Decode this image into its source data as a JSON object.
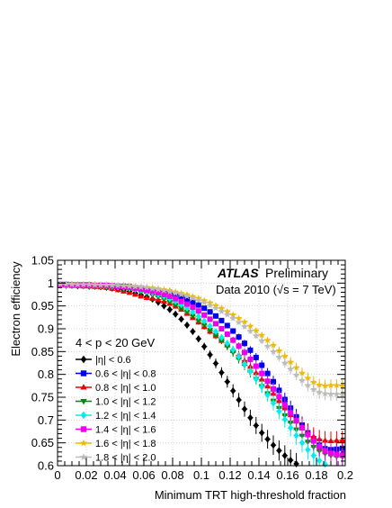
{
  "chart_data": {
    "type": "scatter",
    "xlabel": "Minimum TRT high-threshold fraction",
    "ylabel": "Electron efficiency",
    "xlim": [
      0,
      0.2
    ],
    "ylim": [
      0.6,
      1.05
    ],
    "xticks": [
      0,
      0.02,
      0.04,
      0.06,
      0.08,
      0.1,
      0.12,
      0.14,
      0.16,
      0.18,
      0.2
    ],
    "xtick_labels": [
      "0",
      "0.02",
      "0.04",
      "0.06",
      "0.08",
      "0.1",
      "0.12",
      "0.14",
      "0.16",
      "0.18",
      "0.2"
    ],
    "yticks": [
      0.6,
      0.65,
      0.7,
      0.75,
      0.8,
      0.85,
      0.9,
      0.95,
      1,
      1.05
    ],
    "ytick_labels": [
      "0.6",
      "0.65",
      "0.7",
      "0.75",
      "0.8",
      "0.85",
      "0.9",
      "0.95",
      "1",
      "1.05"
    ],
    "grid": true,
    "legend_position": "left",
    "annotations": {
      "atlas": "ATLAS",
      "preliminary": "Preliminary",
      "dataset": "Data 2010 (√s = 7 TeV)",
      "selection": "4 < p < 20 GeV"
    },
    "x": [
      0.002,
      0.006,
      0.01,
      0.014,
      0.018,
      0.022,
      0.026,
      0.03,
      0.034,
      0.038,
      0.042,
      0.046,
      0.05,
      0.054,
      0.058,
      0.062,
      0.066,
      0.07,
      0.074,
      0.078,
      0.082,
      0.086,
      0.09,
      0.094,
      0.098,
      0.102,
      0.106,
      0.11,
      0.114,
      0.118,
      0.122,
      0.126,
      0.13,
      0.134,
      0.138,
      0.142,
      0.146,
      0.15,
      0.154,
      0.158,
      0.162,
      0.166,
      0.17,
      0.174,
      0.178,
      0.182,
      0.186,
      0.19,
      0.194,
      0.198
    ],
    "series": [
      {
        "name": "|η| < 0.6",
        "color": "#000000",
        "marker": "diamond",
        "values": [
          0.996,
          0.995,
          0.995,
          0.994,
          0.994,
          0.993,
          0.993,
          0.992,
          0.991,
          0.989,
          0.987,
          0.985,
          0.982,
          0.978,
          0.974,
          0.97,
          0.965,
          0.958,
          0.95,
          0.942,
          0.932,
          0.921,
          0.908,
          0.894,
          0.878,
          0.861,
          0.843,
          0.824,
          0.804,
          0.784,
          0.764,
          0.744,
          0.724,
          0.705,
          0.688,
          0.672,
          0.658,
          0.645,
          0.633,
          0.622,
          0.612,
          0.604,
          0.597,
          0.592,
          0.588,
          0.585,
          0.583,
          0.582,
          0.581,
          0.58
        ]
      },
      {
        "name": "0.6 < |η| < 0.8",
        "color": "#0000ee",
        "marker": "square",
        "values": [
          0.997,
          0.997,
          0.996,
          0.996,
          0.996,
          0.996,
          0.995,
          0.995,
          0.995,
          0.994,
          0.993,
          0.993,
          0.992,
          0.99,
          0.989,
          0.987,
          0.985,
          0.983,
          0.98,
          0.977,
          0.973,
          0.969,
          0.964,
          0.958,
          0.952,
          0.945,
          0.937,
          0.928,
          0.918,
          0.907,
          0.895,
          0.882,
          0.868,
          0.853,
          0.837,
          0.82,
          0.802,
          0.784,
          0.765,
          0.745,
          0.726,
          0.707,
          0.689,
          0.672,
          0.657,
          0.645,
          0.637,
          0.635,
          0.636,
          0.638
        ]
      },
      {
        "name": "0.8  < |η| < 1.0",
        "color": "#ee0000",
        "marker": "triangle-up",
        "values": [
          0.995,
          0.995,
          0.994,
          0.994,
          0.993,
          0.993,
          0.992,
          0.991,
          0.99,
          0.988,
          0.985,
          0.982,
          0.979,
          0.975,
          0.971,
          0.968,
          0.966,
          0.964,
          0.96,
          0.955,
          0.949,
          0.942,
          0.933,
          0.924,
          0.914,
          0.904,
          0.894,
          0.884,
          0.874,
          0.864,
          0.853,
          0.842,
          0.83,
          0.817,
          0.803,
          0.789,
          0.774,
          0.758,
          0.742,
          0.726,
          0.711,
          0.697,
          0.684,
          0.673,
          0.664,
          0.658,
          0.655,
          0.654,
          0.655,
          0.656
        ]
      },
      {
        "name": "1.0 < |η| < 1.2",
        "color": "#008800",
        "marker": "triangle-down",
        "values": [
          0.996,
          0.996,
          0.995,
          0.995,
          0.995,
          0.994,
          0.994,
          0.993,
          0.992,
          0.991,
          0.99,
          0.988,
          0.986,
          0.984,
          0.981,
          0.978,
          0.974,
          0.97,
          0.965,
          0.959,
          0.952,
          0.945,
          0.937,
          0.928,
          0.918,
          0.908,
          0.897,
          0.886,
          0.874,
          0.861,
          0.848,
          0.834,
          0.82,
          0.805,
          0.79,
          0.774,
          0.758,
          0.742,
          0.726,
          0.71,
          0.694,
          0.679,
          0.665,
          0.652,
          0.641,
          0.632,
          0.626,
          0.622,
          0.62,
          0.619
        ]
      },
      {
        "name": "1.2 < |η| < 1.4",
        "color": "#00eeee",
        "marker": "diamond",
        "values": [
          0.997,
          0.996,
          0.996,
          0.996,
          0.995,
          0.995,
          0.995,
          0.994,
          0.994,
          0.993,
          0.992,
          0.991,
          0.989,
          0.987,
          0.985,
          0.982,
          0.979,
          0.975,
          0.971,
          0.966,
          0.96,
          0.953,
          0.945,
          0.937,
          0.927,
          0.917,
          0.906,
          0.894,
          0.881,
          0.868,
          0.854,
          0.839,
          0.823,
          0.807,
          0.79,
          0.773,
          0.755,
          0.737,
          0.719,
          0.701,
          0.683,
          0.666,
          0.65,
          0.635,
          0.622,
          0.611,
          0.603,
          0.598,
          0.595,
          0.594
        ]
      },
      {
        "name": "1.4 < |η| < 1.6",
        "color": "#ee00ee",
        "marker": "square",
        "values": [
          0.997,
          0.997,
          0.996,
          0.996,
          0.996,
          0.996,
          0.995,
          0.995,
          0.995,
          0.994,
          0.993,
          0.992,
          0.991,
          0.989,
          0.987,
          0.985,
          0.982,
          0.979,
          0.975,
          0.971,
          0.966,
          0.96,
          0.954,
          0.947,
          0.939,
          0.93,
          0.921,
          0.911,
          0.9,
          0.888,
          0.875,
          0.862,
          0.848,
          0.833,
          0.818,
          0.802,
          0.785,
          0.768,
          0.751,
          0.733,
          0.716,
          0.699,
          0.683,
          0.668,
          0.654,
          0.642,
          0.633,
          0.627,
          0.624,
          0.623
        ]
      },
      {
        "name": "1.6 < |η| < 1.8",
        "color": "#eebb00",
        "marker": "star",
        "values": [
          0.998,
          0.998,
          0.998,
          0.997,
          0.997,
          0.997,
          0.997,
          0.996,
          0.996,
          0.996,
          0.995,
          0.995,
          0.994,
          0.993,
          0.992,
          0.991,
          0.99,
          0.988,
          0.986,
          0.984,
          0.981,
          0.978,
          0.975,
          0.971,
          0.967,
          0.962,
          0.957,
          0.951,
          0.945,
          0.938,
          0.931,
          0.923,
          0.915,
          0.906,
          0.896,
          0.886,
          0.875,
          0.864,
          0.852,
          0.84,
          0.827,
          0.815,
          0.803,
          0.792,
          0.783,
          0.777,
          0.775,
          0.776,
          0.776,
          0.775
        ]
      },
      {
        "name": "1.8 < |η| < 2.0",
        "color": "#bbbbbb",
        "marker": "star",
        "values": [
          0.998,
          0.998,
          0.997,
          0.997,
          0.997,
          0.997,
          0.996,
          0.996,
          0.996,
          0.995,
          0.995,
          0.994,
          0.993,
          0.992,
          0.991,
          0.99,
          0.988,
          0.986,
          0.984,
          0.981,
          0.978,
          0.975,
          0.971,
          0.967,
          0.962,
          0.957,
          0.951,
          0.945,
          0.938,
          0.931,
          0.923,
          0.914,
          0.905,
          0.895,
          0.885,
          0.874,
          0.862,
          0.85,
          0.838,
          0.825,
          0.812,
          0.799,
          0.787,
          0.776,
          0.767,
          0.761,
          0.758,
          0.757,
          0.757,
          0.756
        ]
      }
    ]
  }
}
